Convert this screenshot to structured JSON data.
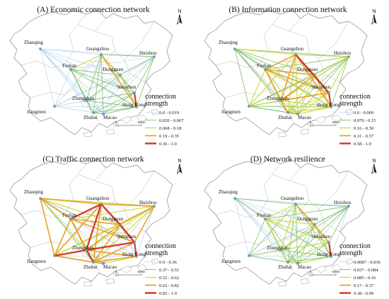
{
  "panels": [
    {
      "key": "A",
      "title": "(A) Economic connection network",
      "legend_title": [
        "connection",
        "strength"
      ],
      "legend": [
        {
          "range": "0.0 - 0.019",
          "color": "#a9cbe6",
          "width": 0.6
        },
        {
          "range": "0.020 - 0.067",
          "color": "#7fbf6a",
          "width": 0.9
        },
        {
          "range": "0.068 - 0.18",
          "color": "#c8d83a",
          "width": 1.2
        },
        {
          "range": "0.19 - 0.35",
          "color": "#e8a020",
          "width": 1.7
        },
        {
          "range": "0.36 - 1.0",
          "color": "#d42a20",
          "width": 2.3
        }
      ]
    },
    {
      "key": "B",
      "title": "(B) Information connection network",
      "legend_title": [
        "connection",
        "strength"
      ],
      "legend": [
        {
          "range": "0.0 - 0.069",
          "color": "#a9cbe6",
          "width": 0.6
        },
        {
          "range": "0.070 - 0.15",
          "color": "#7fbf6a",
          "width": 0.9
        },
        {
          "range": "0.16 - 0.30",
          "color": "#c8d83a",
          "width": 1.2
        },
        {
          "range": "0.31 - 0.57",
          "color": "#e8a020",
          "width": 1.7
        },
        {
          "range": "0.58 - 1.0",
          "color": "#d42a20",
          "width": 2.3
        }
      ]
    },
    {
      "key": "C",
      "title": "(C) Traffic connection network",
      "legend_title": [
        "connection",
        "strength"
      ],
      "legend": [
        {
          "range": "0.0 - 0.36",
          "color": "#a9cbe6",
          "width": 0.6
        },
        {
          "range": "0.37 - 0.51",
          "color": "#7fbf6a",
          "width": 0.9
        },
        {
          "range": "0.52 - 0.62",
          "color": "#c8d83a",
          "width": 1.2
        },
        {
          "range": "0.63 - 0.82",
          "color": "#e8a020",
          "width": 1.7
        },
        {
          "range": "0.83 - 1.0",
          "color": "#d42a20",
          "width": 2.3
        }
      ]
    },
    {
      "key": "D",
      "title": "(D) Network resilience",
      "legend_title": [
        "connection",
        "strength"
      ],
      "legend": [
        {
          "range": "0.0087 - 0.036",
          "color": "#a9cbe6",
          "width": 0.6
        },
        {
          "range": "0.037 - 0.084",
          "color": "#7fbf6a",
          "width": 0.9
        },
        {
          "range": "0.085 - 0.16",
          "color": "#c8d83a",
          "width": 1.2
        },
        {
          "range": "0.17 - 0.37",
          "color": "#e8a020",
          "width": 1.7
        },
        {
          "range": "0.38 - 0.99",
          "color": "#d42a20",
          "width": 2.3
        }
      ]
    }
  ],
  "cities": [
    "Zhaoqing",
    "Guangzhou",
    "Huizhou",
    "Foshan",
    "Dongguan",
    "Shenzhen",
    "Zhongshan",
    "Hong Kong",
    "Jiangmen",
    "Zhuhai",
    "Macao"
  ],
  "north_label": "N",
  "scale": {
    "ticks": [
      "0",
      "50km"
    ]
  },
  "links": {
    "A": [
      [
        "Zhaoqing",
        "Guangzhou",
        0
      ],
      [
        "Zhaoqing",
        "Huizhou",
        0
      ],
      [
        "Zhaoqing",
        "Foshan",
        0
      ],
      [
        "Zhaoqing",
        "Dongguan",
        0
      ],
      [
        "Zhaoqing",
        "Shenzhen",
        0
      ],
      [
        "Zhaoqing",
        "Zhongshan",
        0
      ],
      [
        "Zhaoqing",
        "Hong Kong",
        0
      ],
      [
        "Zhaoqing",
        "Jiangmen",
        0
      ],
      [
        "Zhaoqing",
        "Zhuhai",
        0
      ],
      [
        "Zhaoqing",
        "Macao",
        0
      ],
      [
        "Jiangmen",
        "Guangzhou",
        0
      ],
      [
        "Jiangmen",
        "Foshan",
        0
      ],
      [
        "Jiangmen",
        "Dongguan",
        0
      ],
      [
        "Jiangmen",
        "Shenzhen",
        0
      ],
      [
        "Jiangmen",
        "Zhongshan",
        0
      ],
      [
        "Jiangmen",
        "Hong Kong",
        0
      ],
      [
        "Jiangmen",
        "Zhuhai",
        0
      ],
      [
        "Jiangmen",
        "Macao",
        0
      ],
      [
        "Jiangmen",
        "Huizhou",
        0
      ],
      [
        "Guangzhou",
        "Huizhou",
        1
      ],
      [
        "Guangzhou",
        "Foshan",
        2
      ],
      [
        "Guangzhou",
        "Dongguan",
        1
      ],
      [
        "Guangzhou",
        "Shenzhen",
        2
      ],
      [
        "Guangzhou",
        "Zhongshan",
        1
      ],
      [
        "Guangzhou",
        "Hong Kong",
        3
      ],
      [
        "Guangzhou",
        "Zhuhai",
        1
      ],
      [
        "Guangzhou",
        "Macao",
        1
      ],
      [
        "Huizhou",
        "Foshan",
        0
      ],
      [
        "Huizhou",
        "Dongguan",
        1
      ],
      [
        "Huizhou",
        "Shenzhen",
        1
      ],
      [
        "Huizhou",
        "Zhongshan",
        0
      ],
      [
        "Huizhou",
        "Hong Kong",
        1
      ],
      [
        "Huizhou",
        "Zhuhai",
        0
      ],
      [
        "Huizhou",
        "Macao",
        0
      ],
      [
        "Foshan",
        "Dongguan",
        1
      ],
      [
        "Foshan",
        "Shenzhen",
        1
      ],
      [
        "Foshan",
        "Zhongshan",
        1
      ],
      [
        "Foshan",
        "Hong Kong",
        1
      ],
      [
        "Foshan",
        "Zhuhai",
        1
      ],
      [
        "Foshan",
        "Macao",
        0
      ],
      [
        "Dongguan",
        "Shenzhen",
        1
      ],
      [
        "Dongguan",
        "Zhongshan",
        1
      ],
      [
        "Dongguan",
        "Hong Kong",
        1
      ],
      [
        "Dongguan",
        "Zhuhai",
        0
      ],
      [
        "Dongguan",
        "Macao",
        0
      ],
      [
        "Shenzhen",
        "Zhongshan",
        1
      ],
      [
        "Shenzhen",
        "Hong Kong",
        4
      ],
      [
        "Shenzhen",
        "Zhuhai",
        1
      ],
      [
        "Shenzhen",
        "Macao",
        1
      ],
      [
        "Zhongshan",
        "Hong Kong",
        1
      ],
      [
        "Zhongshan",
        "Zhuhai",
        1
      ],
      [
        "Zhongshan",
        "Macao",
        0
      ],
      [
        "Hong Kong",
        "Zhuhai",
        1
      ],
      [
        "Hong Kong",
        "Macao",
        1
      ],
      [
        "Zhuhai",
        "Macao",
        1
      ]
    ],
    "B": [
      [
        "Zhaoqing",
        "Guangzhou",
        2
      ],
      [
        "Zhaoqing",
        "Huizhou",
        1
      ],
      [
        "Zhaoqing",
        "Foshan",
        1
      ],
      [
        "Zhaoqing",
        "Dongguan",
        1
      ],
      [
        "Zhaoqing",
        "Shenzhen",
        1
      ],
      [
        "Zhaoqing",
        "Zhongshan",
        1
      ],
      [
        "Zhaoqing",
        "Hong Kong",
        1
      ],
      [
        "Zhaoqing",
        "Jiangmen",
        1
      ],
      [
        "Zhaoqing",
        "Zhuhai",
        1
      ],
      [
        "Zhaoqing",
        "Macao",
        0
      ],
      [
        "Jiangmen",
        "Guangzhou",
        2
      ],
      [
        "Jiangmen",
        "Foshan",
        2
      ],
      [
        "Jiangmen",
        "Dongguan",
        1
      ],
      [
        "Jiangmen",
        "Shenzhen",
        1
      ],
      [
        "Jiangmen",
        "Zhongshan",
        2
      ],
      [
        "Jiangmen",
        "Hong Kong",
        1
      ],
      [
        "Jiangmen",
        "Zhuhai",
        1
      ],
      [
        "Jiangmen",
        "Macao",
        1
      ],
      [
        "Jiangmen",
        "Huizhou",
        1
      ],
      [
        "Guangzhou",
        "Huizhou",
        2
      ],
      [
        "Guangzhou",
        "Foshan",
        3
      ],
      [
        "Guangzhou",
        "Dongguan",
        3
      ],
      [
        "Guangzhou",
        "Shenzhen",
        4
      ],
      [
        "Guangzhou",
        "Zhongshan",
        3
      ],
      [
        "Guangzhou",
        "Hong Kong",
        3
      ],
      [
        "Guangzhou",
        "Zhuhai",
        2
      ],
      [
        "Guangzhou",
        "Macao",
        2
      ],
      [
        "Huizhou",
        "Foshan",
        1
      ],
      [
        "Huizhou",
        "Dongguan",
        2
      ],
      [
        "Huizhou",
        "Shenzhen",
        2
      ],
      [
        "Huizhou",
        "Zhongshan",
        1
      ],
      [
        "Huizhou",
        "Hong Kong",
        1
      ],
      [
        "Huizhou",
        "Zhuhai",
        1
      ],
      [
        "Huizhou",
        "Macao",
        1
      ],
      [
        "Foshan",
        "Dongguan",
        3
      ],
      [
        "Foshan",
        "Shenzhen",
        3
      ],
      [
        "Foshan",
        "Zhongshan",
        3
      ],
      [
        "Foshan",
        "Hong Kong",
        2
      ],
      [
        "Foshan",
        "Zhuhai",
        2
      ],
      [
        "Foshan",
        "Macao",
        2
      ],
      [
        "Dongguan",
        "Shenzhen",
        3
      ],
      [
        "Dongguan",
        "Zhongshan",
        3
      ],
      [
        "Dongguan",
        "Hong Kong",
        2
      ],
      [
        "Dongguan",
        "Zhuhai",
        2
      ],
      [
        "Dongguan",
        "Macao",
        2
      ],
      [
        "Shenzhen",
        "Zhongshan",
        3
      ],
      [
        "Shenzhen",
        "Hong Kong",
        4
      ],
      [
        "Shenzhen",
        "Zhuhai",
        2
      ],
      [
        "Shenzhen",
        "Macao",
        2
      ],
      [
        "Zhongshan",
        "Hong Kong",
        2
      ],
      [
        "Zhongshan",
        "Zhuhai",
        3
      ],
      [
        "Zhongshan",
        "Macao",
        2
      ],
      [
        "Hong Kong",
        "Zhuhai",
        2
      ],
      [
        "Hong Kong",
        "Macao",
        2
      ],
      [
        "Zhuhai",
        "Macao",
        3
      ]
    ],
    "C": [
      [
        "Zhaoqing",
        "Guangzhou",
        3
      ],
      [
        "Zhaoqing",
        "Huizhou",
        2
      ],
      [
        "Zhaoqing",
        "Foshan",
        3
      ],
      [
        "Zhaoqing",
        "Dongguan",
        2
      ],
      [
        "Zhaoqing",
        "Shenzhen",
        1
      ],
      [
        "Zhaoqing",
        "Zhongshan",
        2
      ],
      [
        "Zhaoqing",
        "Hong Kong",
        0
      ],
      [
        "Zhaoqing",
        "Jiangmen",
        3
      ],
      [
        "Zhaoqing",
        "Zhuhai",
        1
      ],
      [
        "Zhaoqing",
        "Macao",
        0
      ],
      [
        "Jiangmen",
        "Guangzhou",
        3
      ],
      [
        "Jiangmen",
        "Foshan",
        3
      ],
      [
        "Jiangmen",
        "Dongguan",
        2
      ],
      [
        "Jiangmen",
        "Shenzhen",
        2
      ],
      [
        "Jiangmen",
        "Zhongshan",
        4
      ],
      [
        "Jiangmen",
        "Hong Kong",
        0
      ],
      [
        "Jiangmen",
        "Zhuhai",
        3
      ],
      [
        "Jiangmen",
        "Macao",
        1
      ],
      [
        "Jiangmen",
        "Huizhou",
        2
      ],
      [
        "Guangzhou",
        "Huizhou",
        3
      ],
      [
        "Guangzhou",
        "Foshan",
        4
      ],
      [
        "Guangzhou",
        "Dongguan",
        4
      ],
      [
        "Guangzhou",
        "Shenzhen",
        3
      ],
      [
        "Guangzhou",
        "Zhongshan",
        4
      ],
      [
        "Guangzhou",
        "Hong Kong",
        0
      ],
      [
        "Guangzhou",
        "Zhuhai",
        3
      ],
      [
        "Guangzhou",
        "Macao",
        0
      ],
      [
        "Huizhou",
        "Foshan",
        2
      ],
      [
        "Huizhou",
        "Dongguan",
        3
      ],
      [
        "Huizhou",
        "Shenzhen",
        3
      ],
      [
        "Huizhou",
        "Zhongshan",
        2
      ],
      [
        "Huizhou",
        "Hong Kong",
        0
      ],
      [
        "Huizhou",
        "Zhuhai",
        2
      ],
      [
        "Huizhou",
        "Macao",
        0
      ],
      [
        "Foshan",
        "Dongguan",
        3
      ],
      [
        "Foshan",
        "Shenzhen",
        3
      ],
      [
        "Foshan",
        "Zhongshan",
        3
      ],
      [
        "Foshan",
        "Hong Kong",
        0
      ],
      [
        "Foshan",
        "Zhuhai",
        3
      ],
      [
        "Foshan",
        "Macao",
        0
      ],
      [
        "Dongguan",
        "Shenzhen",
        4
      ],
      [
        "Dongguan",
        "Zhongshan",
        3
      ],
      [
        "Dongguan",
        "Hong Kong",
        0
      ],
      [
        "Dongguan",
        "Zhuhai",
        3
      ],
      [
        "Dongguan",
        "Macao",
        0
      ],
      [
        "Shenzhen",
        "Zhongshan",
        4
      ],
      [
        "Shenzhen",
        "Hong Kong",
        4
      ],
      [
        "Shenzhen",
        "Zhuhai",
        3
      ],
      [
        "Shenzhen",
        "Macao",
        0
      ],
      [
        "Zhongshan",
        "Hong Kong",
        3
      ],
      [
        "Zhongshan",
        "Zhuhai",
        4
      ],
      [
        "Zhongshan",
        "Macao",
        1
      ],
      [
        "Hong Kong",
        "Zhuhai",
        3
      ],
      [
        "Hong Kong",
        "Macao",
        2
      ],
      [
        "Zhuhai",
        "Macao",
        3
      ]
    ],
    "D": [
      [
        "Zhaoqing",
        "Guangzhou",
        1
      ],
      [
        "Zhaoqing",
        "Huizhou",
        0
      ],
      [
        "Zhaoqing",
        "Foshan",
        1
      ],
      [
        "Zhaoqing",
        "Dongguan",
        0
      ],
      [
        "Zhaoqing",
        "Shenzhen",
        0
      ],
      [
        "Zhaoqing",
        "Zhongshan",
        0
      ],
      [
        "Zhaoqing",
        "Hong Kong",
        0
      ],
      [
        "Zhaoqing",
        "Jiangmen",
        0
      ],
      [
        "Zhaoqing",
        "Zhuhai",
        0
      ],
      [
        "Zhaoqing",
        "Macao",
        0
      ],
      [
        "Jiangmen",
        "Guangzhou",
        1
      ],
      [
        "Jiangmen",
        "Foshan",
        1
      ],
      [
        "Jiangmen",
        "Dongguan",
        0
      ],
      [
        "Jiangmen",
        "Shenzhen",
        0
      ],
      [
        "Jiangmen",
        "Zhongshan",
        1
      ],
      [
        "Jiangmen",
        "Hong Kong",
        0
      ],
      [
        "Jiangmen",
        "Zhuhai",
        1
      ],
      [
        "Jiangmen",
        "Macao",
        0
      ],
      [
        "Jiangmen",
        "Huizhou",
        0
      ],
      [
        "Guangzhou",
        "Huizhou",
        1
      ],
      [
        "Guangzhou",
        "Foshan",
        2
      ],
      [
        "Guangzhou",
        "Dongguan",
        2
      ],
      [
        "Guangzhou",
        "Shenzhen",
        3
      ],
      [
        "Guangzhou",
        "Zhongshan",
        2
      ],
      [
        "Guangzhou",
        "Hong Kong",
        1
      ],
      [
        "Guangzhou",
        "Zhuhai",
        1
      ],
      [
        "Guangzhou",
        "Macao",
        1
      ],
      [
        "Huizhou",
        "Foshan",
        1
      ],
      [
        "Huizhou",
        "Dongguan",
        1
      ],
      [
        "Huizhou",
        "Shenzhen",
        1
      ],
      [
        "Huizhou",
        "Zhongshan",
        1
      ],
      [
        "Huizhou",
        "Hong Kong",
        0
      ],
      [
        "Huizhou",
        "Zhuhai",
        1
      ],
      [
        "Huizhou",
        "Macao",
        0
      ],
      [
        "Foshan",
        "Dongguan",
        2
      ],
      [
        "Foshan",
        "Shenzhen",
        2
      ],
      [
        "Foshan",
        "Zhongshan",
        2
      ],
      [
        "Foshan",
        "Hong Kong",
        1
      ],
      [
        "Foshan",
        "Zhuhai",
        1
      ],
      [
        "Foshan",
        "Macao",
        1
      ],
      [
        "Dongguan",
        "Shenzhen",
        2
      ],
      [
        "Dongguan",
        "Zhongshan",
        2
      ],
      [
        "Dongguan",
        "Hong Kong",
        1
      ],
      [
        "Dongguan",
        "Zhuhai",
        1
      ],
      [
        "Dongguan",
        "Macao",
        1
      ],
      [
        "Shenzhen",
        "Zhongshan",
        2
      ],
      [
        "Shenzhen",
        "Hong Kong",
        4
      ],
      [
        "Shenzhen",
        "Zhuhai",
        2
      ],
      [
        "Shenzhen",
        "Macao",
        1
      ],
      [
        "Zhongshan",
        "Hong Kong",
        1
      ],
      [
        "Zhongshan",
        "Zhuhai",
        2
      ],
      [
        "Zhongshan",
        "Macao",
        1
      ],
      [
        "Hong Kong",
        "Zhuhai",
        1
      ],
      [
        "Hong Kong",
        "Macao",
        2
      ],
      [
        "Zhuhai",
        "Macao",
        2
      ]
    ]
  }
}
